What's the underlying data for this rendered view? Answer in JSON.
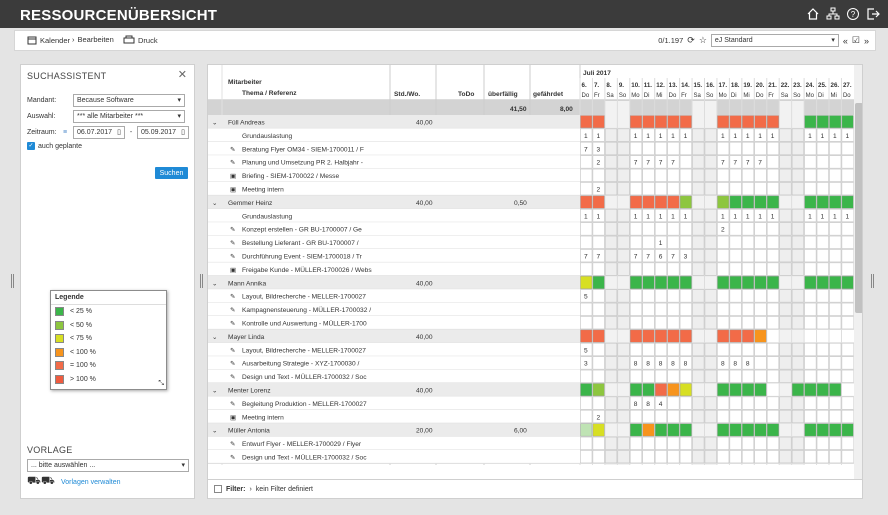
{
  "app": {
    "title": "RESSOURCENÜBERSICHT"
  },
  "toolbar": {
    "kalender": "Kalender",
    "bearbeiten": "Bearbeiten",
    "druck": "Druck",
    "counter": "0/1.197",
    "standard": "eJ Standard"
  },
  "sidebar": {
    "title": "SUCHASSISTENT",
    "mandant_label": "Mandant:",
    "mandant_value": "Because Software",
    "auswahl_label": "Auswahl:",
    "auswahl_value": "*** alle Mitarbeiter ***",
    "zeitraum_label": "Zeitraum:",
    "from": "06.07.2017",
    "to": "05.09.2017",
    "geplant_label": "auch geplante",
    "suchen": "Suchen",
    "vorlage_title": "VORLAGE",
    "vorlage_value": "... bitte auswählen ...",
    "vorlagen_link": "Vorlagen verwalten"
  },
  "legend": {
    "title": "Legende",
    "items": [
      {
        "label": "< 25 %",
        "color": "#3bb54a"
      },
      {
        "label": "< 50 %",
        "color": "#8dc63f"
      },
      {
        "label": "< 75 %",
        "color": "#d7df23"
      },
      {
        "label": "< 100 %",
        "color": "#f7941d"
      },
      {
        "label": "= 100 %",
        "color": "#f26b48"
      },
      {
        "label": "> 100 %",
        "color": "#ef5b3f"
      }
    ]
  },
  "table": {
    "col_mitarbeiter": "Mitarbeiter",
    "col_thema": "Thema / Referenz",
    "col_std": "Std./Wo.",
    "col_todo": "ToDo",
    "col_ueberfaellig": "überfällig",
    "col_gefaehrdet": "gefährdet",
    "sum_ueberfaellig": "41,50",
    "sum_gefaehrdet": "8,00",
    "month": "Juli 2017",
    "days": [
      "6.",
      "7.",
      "8.",
      "9.",
      "10.",
      "11.",
      "12.",
      "13.",
      "14.",
      "15.",
      "16.",
      "17.",
      "18.",
      "19.",
      "20.",
      "21.",
      "22.",
      "23.",
      "24.",
      "25.",
      "26.",
      "27."
    ],
    "weekdays": [
      "Do",
      "Fr",
      "Sa",
      "So",
      "Mo",
      "Di",
      "Mi",
      "Do",
      "Fr",
      "Sa",
      "So",
      "Mo",
      "Di",
      "Mi",
      "Do",
      "Fr",
      "Sa",
      "So",
      "Mo",
      "Di",
      "Mi",
      "Do"
    ],
    "rows": [
      {
        "type": "person",
        "label": "Füll Andreas",
        "std": "40,00",
        "ue": "",
        "cells": "rr..rrrrr..rrrrr..gggg"
      },
      {
        "type": "task",
        "icon": "none",
        "label": "Grundauslastung",
        "cells": "11..11111..11111..1111"
      },
      {
        "type": "task",
        "icon": "pin",
        "label": "Beratung Flyer OM34 - SIEM-1700011 / Flyer",
        "cells": "73...................."
      },
      {
        "type": "task",
        "icon": "pin",
        "label": "Planung und Umsetzung PR 2. Halbjahr - ARTA-1",
        "cells": ".2..7777...7777......"
      },
      {
        "type": "task",
        "icon": "cal",
        "label": "Briefing - SIEM-1700022 / Messe",
        "cells": "......................"
      },
      {
        "type": "task",
        "icon": "cal",
        "label": "Meeting intern",
        "cells": ".2...................."
      },
      {
        "type": "person",
        "label": "Gemmer Heinz",
        "std": "40,00",
        "ue": "0,50",
        "cells": "rr..rrrrl..lgggg..gggg"
      },
      {
        "type": "task",
        "icon": "none",
        "label": "Grundauslastung",
        "cells": "11..11111..11111..1111"
      },
      {
        "type": "task",
        "icon": "pin",
        "label": "Konzept erstellen - GR BU-1700007 / Geschäft",
        "cells": "...........2.........."
      },
      {
        "type": "task",
        "icon": "pin",
        "label": "Bestellung Lieferant - GR BU-1700007 / Geschä",
        "cells": "......1..............."
      },
      {
        "type": "task",
        "icon": "pin",
        "label": "Durchführung Event - SIEM-1700018 / Training",
        "cells": "77..77673............."
      },
      {
        "type": "task",
        "icon": "cal",
        "label": "Freigabe Kunde - MÜLLER-1700026 / Website",
        "cells": "......................"
      },
      {
        "type": "person",
        "label": "Mann Annika",
        "std": "40,00",
        "ue": "",
        "cells": "yg..ggggg..ggggg..gggg"
      },
      {
        "type": "task",
        "icon": "pin",
        "label": "Layout, Bildrecherche - MELLER-1700027 / Pro",
        "cells": "5....................."
      },
      {
        "type": "task",
        "icon": "pin",
        "label": "Kampagnensteuerung - MÜLLER-1700032 / Soc",
        "cells": "......................"
      },
      {
        "type": "task",
        "icon": "pin",
        "label": "Kontrolle und Auswertung - MÜLLER-1700032",
        "cells": "......................"
      },
      {
        "type": "person",
        "label": "Mayer Linda",
        "std": "40,00",
        "ue": "",
        "cells": "rr..rrrrr..rrro........"
      },
      {
        "type": "task",
        "icon": "pin",
        "label": "Layout, Bildrecherche - MELLER-1700027 / Pro",
        "cells": "5....................."
      },
      {
        "type": "task",
        "icon": "pin",
        "label": "Ausarbeitung Strategie - XYZ-1700030 / Conte",
        "cells": "3...88888..888........"
      },
      {
        "type": "task",
        "icon": "pin",
        "label": "Design und Text - MÜLLER-1700032 / Social Me",
        "cells": "......................"
      },
      {
        "type": "person",
        "label": "Menter Lorenz",
        "std": "40,00",
        "ue": "",
        "cells": "gl..ggroy..gggg..gggg"
      },
      {
        "type": "task",
        "icon": "pin",
        "label": "Begleitung Produktion - MELLER-1700027 / Pro",
        "cells": "....884................"
      },
      {
        "type": "task",
        "icon": "cal",
        "label": "Meeting intern",
        "cells": ".2...................."
      },
      {
        "type": "person",
        "label": "Müller Antonia",
        "std": "20,00",
        "ue": "6,00",
        "cells": "ey..goggg..ggggg..gggg"
      },
      {
        "type": "task",
        "icon": "pin",
        "label": "Entwurf Flyer - MELLER-1700029 / Flyer Jubilä",
        "cells": "......................"
      },
      {
        "type": "task",
        "icon": "pin",
        "label": "Design und Text - MÜLLER-1700032 / Social Me",
        "cells": "......................"
      }
    ]
  },
  "filter": {
    "label": "Filter:",
    "value": "kein Filter definiert"
  },
  "colors": {
    "red": "#f26b48",
    "green": "#3bb54a",
    "lightgreen": "#8dc63f",
    "yellow": "#d7df23",
    "orange": "#f7941d"
  }
}
